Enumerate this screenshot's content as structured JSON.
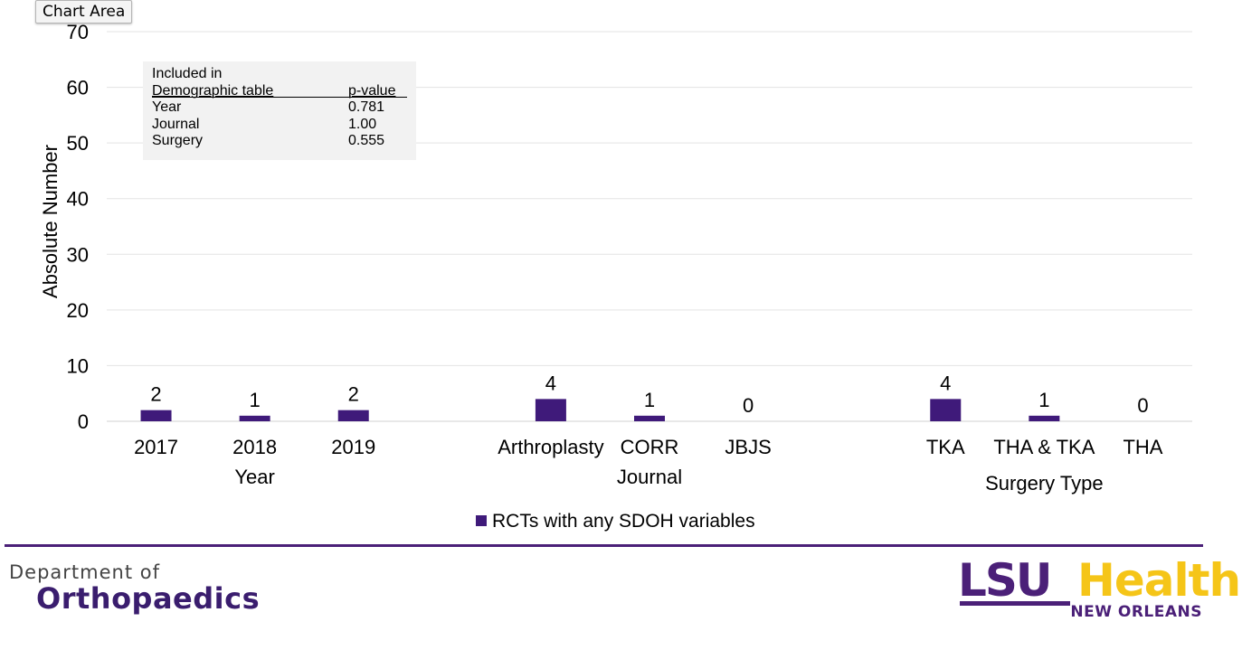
{
  "tooltip": "Chart Area",
  "chart_data": {
    "type": "bar",
    "ylabel": "Absolute Number",
    "ylim": [
      0,
      70
    ],
    "yticks": [
      "0",
      "10",
      "20",
      "30",
      "40",
      "50",
      "60",
      "70"
    ],
    "grid": true,
    "legend_position": "bottom",
    "groups": [
      {
        "label": "Year",
        "categories": [
          "2017",
          "2018",
          "2019"
        ],
        "values": [
          2,
          1,
          2
        ]
      },
      {
        "label": "Journal",
        "categories": [
          "Arthroplasty",
          "CORR",
          "JBJS"
        ],
        "values": [
          4,
          1,
          0
        ]
      },
      {
        "label": "Surgery Type",
        "categories": [
          "TKA",
          "THA & TKA",
          "THA"
        ],
        "values": [
          4,
          1,
          0
        ]
      }
    ],
    "series": [
      {
        "name": "RCTs with any SDOH variables",
        "color": "#3f1a7a"
      }
    ]
  },
  "inset_table": {
    "header_line1": "Included in",
    "header_col1": "Demographic table",
    "header_col2": "p-value",
    "rows": [
      {
        "label": "Year",
        "value": "0.781"
      },
      {
        "label": "Journal",
        "value": "1.00"
      },
      {
        "label": "Surgery",
        "value": "0.555"
      }
    ]
  },
  "footer": {
    "dept_line1": "Department of",
    "dept_line2": "Orthopaedics",
    "logo_lsu": "LSU",
    "logo_health": "Health",
    "logo_city": "NEW ORLEANS"
  },
  "colors": {
    "bar": "#3f1a7a",
    "brand_purple": "#4b2078",
    "brand_gold": "#f5c518",
    "grid": "#e3e3e3"
  }
}
